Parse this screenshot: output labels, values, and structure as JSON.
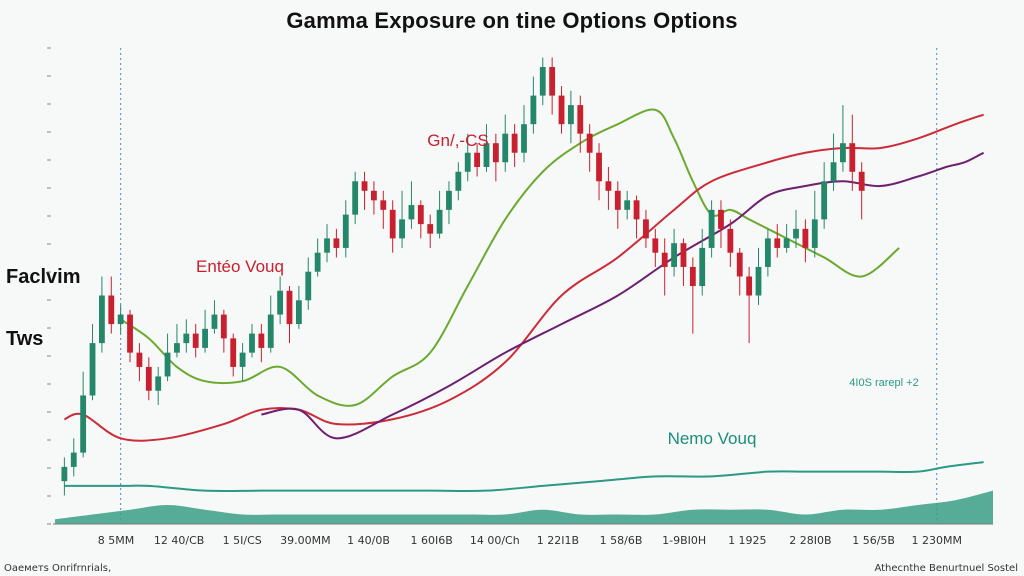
{
  "chart_data": {
    "type": "candlestick",
    "title": "Gamma Exposure on tine Options Options",
    "ylabel": "Faclvim Tws",
    "ylim": [
      0,
      100
    ],
    "xlim": [
      0,
      100
    ],
    "grid": false,
    "x_tick_labels": [
      "8 5MM",
      "12 40/CB",
      "1 5I/CS",
      "39.00MM",
      "1 40/0B",
      "1 60I6B",
      "14 00/Ch",
      "1 22I1B",
      "1 58/6B",
      "1-9BI0H",
      "1 1925",
      "2 28I0B",
      "1 56/5B",
      "1 230MM"
    ],
    "annotations": [
      {
        "text": "Gn/,-CS",
        "color": "#c8202e"
      },
      {
        "text": "Entéo Vouq",
        "color": "#c8202e"
      },
      {
        "text": "Nemo Vouq",
        "color": "#1d8e78"
      },
      {
        "text": "4I0S rarepl +2",
        "color": "#2a9a86"
      }
    ],
    "reference_lines_x": [
      7,
      94
    ],
    "colors": {
      "up": "#25876a",
      "down": "#c8202e",
      "green": "#6aaa2e",
      "red": "#cc2b38",
      "purple": "#6e1f70",
      "teal": "#2a9a86",
      "area": "#3a9f86"
    },
    "series": [
      {
        "type": "line",
        "color": "green",
        "x": [
          7,
          10,
          13,
          16,
          20,
          24,
          28,
          32,
          36,
          40,
          44,
          48,
          52,
          56,
          60,
          64,
          66,
          68,
          70,
          72,
          74,
          78,
          82,
          86,
          90
        ],
        "y": [
          43,
          39,
          33,
          30,
          30,
          33,
          27,
          25,
          31,
          36,
          50,
          64,
          74,
          80,
          84,
          87,
          81,
          72,
          65,
          66,
          64,
          60,
          56,
          52,
          58
        ]
      },
      {
        "type": "line",
        "color": "red",
        "x": [
          1,
          3,
          7,
          12,
          18,
          22,
          26,
          30,
          36,
          42,
          48,
          54,
          60,
          66,
          70,
          76,
          80,
          84,
          88,
          92,
          96,
          99
        ],
        "y": [
          22,
          23,
          18,
          18,
          21,
          24,
          24,
          21,
          22,
          26,
          34,
          48,
          56,
          66,
          72,
          76,
          78,
          79,
          79,
          81,
          84,
          86
        ]
      },
      {
        "type": "line",
        "color": "purple",
        "x": [
          22,
          26,
          30,
          36,
          42,
          48,
          54,
          60,
          66,
          72,
          76,
          80,
          84,
          88,
          92,
          95,
          97,
          99
        ],
        "y": [
          23,
          24,
          18,
          23,
          29,
          36,
          42,
          48,
          56,
          63,
          69,
          71,
          72,
          71,
          73,
          75,
          76,
          78
        ]
      },
      {
        "type": "line",
        "color": "teal",
        "x": [
          1,
          7,
          10,
          16,
          22,
          28,
          34,
          40,
          46,
          52,
          58,
          64,
          70,
          76,
          80,
          84,
          88,
          92,
          95,
          99
        ],
        "y": [
          8,
          8,
          8,
          7,
          7,
          7,
          7,
          7,
          7,
          8,
          9,
          10,
          10,
          11,
          11,
          11,
          11,
          11,
          12,
          13
        ]
      },
      {
        "type": "area",
        "color": "area",
        "x": [
          0,
          4,
          8,
          12,
          16,
          20,
          24,
          28,
          32,
          36,
          40,
          44,
          48,
          52,
          56,
          60,
          64,
          68,
          72,
          76,
          80,
          84,
          88,
          92,
          96,
          100
        ],
        "y": [
          1,
          2,
          3,
          4,
          3,
          2,
          2,
          2,
          2,
          2,
          2,
          2,
          2,
          3,
          2,
          2,
          2,
          3,
          3,
          3,
          2,
          3,
          3,
          4,
          5,
          7
        ]
      }
    ],
    "candles": [
      {
        "x": 1,
        "o": 9,
        "c": 12,
        "h": 14,
        "l": 6
      },
      {
        "x": 2,
        "o": 12,
        "c": 15,
        "h": 18,
        "l": 10
      },
      {
        "x": 3,
        "o": 15,
        "c": 27,
        "h": 32,
        "l": 14
      },
      {
        "x": 4,
        "o": 27,
        "c": 38,
        "h": 42,
        "l": 26
      },
      {
        "x": 5,
        "o": 38,
        "c": 48,
        "h": 52,
        "l": 36
      },
      {
        "x": 6,
        "o": 48,
        "c": 42,
        "h": 52,
        "l": 40
      },
      {
        "x": 7,
        "o": 42,
        "c": 44,
        "h": 46,
        "l": 40
      },
      {
        "x": 8,
        "o": 44,
        "c": 36,
        "h": 45,
        "l": 34
      },
      {
        "x": 9,
        "o": 36,
        "c": 33,
        "h": 38,
        "l": 30
      },
      {
        "x": 10,
        "o": 33,
        "c": 28,
        "h": 35,
        "l": 26
      },
      {
        "x": 11,
        "o": 28,
        "c": 31,
        "h": 33,
        "l": 25
      },
      {
        "x": 12,
        "o": 31,
        "c": 36,
        "h": 40,
        "l": 30
      },
      {
        "x": 13,
        "o": 36,
        "c": 38,
        "h": 42,
        "l": 35
      },
      {
        "x": 14,
        "o": 38,
        "c": 40,
        "h": 43,
        "l": 36
      },
      {
        "x": 15,
        "o": 40,
        "c": 37,
        "h": 42,
        "l": 35
      },
      {
        "x": 16,
        "o": 37,
        "c": 41,
        "h": 45,
        "l": 36
      },
      {
        "x": 17,
        "o": 41,
        "c": 44,
        "h": 47,
        "l": 40
      },
      {
        "x": 18,
        "o": 44,
        "c": 39,
        "h": 45,
        "l": 36
      },
      {
        "x": 19,
        "o": 39,
        "c": 33,
        "h": 40,
        "l": 31
      },
      {
        "x": 20,
        "o": 33,
        "c": 36,
        "h": 38,
        "l": 30
      },
      {
        "x": 21,
        "o": 36,
        "c": 40,
        "h": 42,
        "l": 35
      },
      {
        "x": 22,
        "o": 40,
        "c": 37,
        "h": 42,
        "l": 34
      },
      {
        "x": 23,
        "o": 37,
        "c": 44,
        "h": 48,
        "l": 36
      },
      {
        "x": 24,
        "o": 44,
        "c": 49,
        "h": 52,
        "l": 42
      },
      {
        "x": 25,
        "o": 49,
        "c": 42,
        "h": 50,
        "l": 38
      },
      {
        "x": 26,
        "o": 42,
        "c": 47,
        "h": 50,
        "l": 41
      },
      {
        "x": 27,
        "o": 47,
        "c": 53,
        "h": 56,
        "l": 45
      },
      {
        "x": 28,
        "o": 53,
        "c": 57,
        "h": 60,
        "l": 52
      },
      {
        "x": 29,
        "o": 57,
        "c": 60,
        "h": 63,
        "l": 55
      },
      {
        "x": 30,
        "o": 60,
        "c": 58,
        "h": 62,
        "l": 56
      },
      {
        "x": 31,
        "o": 58,
        "c": 65,
        "h": 68,
        "l": 56
      },
      {
        "x": 32,
        "o": 65,
        "c": 72,
        "h": 74,
        "l": 63
      },
      {
        "x": 33,
        "o": 72,
        "c": 70,
        "h": 74,
        "l": 66
      },
      {
        "x": 34,
        "o": 70,
        "c": 68,
        "h": 72,
        "l": 65
      },
      {
        "x": 35,
        "o": 68,
        "c": 66,
        "h": 70,
        "l": 62
      },
      {
        "x": 36,
        "o": 66,
        "c": 60,
        "h": 68,
        "l": 57
      },
      {
        "x": 37,
        "o": 60,
        "c": 64,
        "h": 70,
        "l": 58
      },
      {
        "x": 38,
        "o": 64,
        "c": 67,
        "h": 72,
        "l": 62
      },
      {
        "x": 39,
        "o": 67,
        "c": 63,
        "h": 68,
        "l": 60
      },
      {
        "x": 40,
        "o": 63,
        "c": 61,
        "h": 65,
        "l": 58
      },
      {
        "x": 41,
        "o": 61,
        "c": 66,
        "h": 70,
        "l": 60
      },
      {
        "x": 42,
        "o": 66,
        "c": 70,
        "h": 72,
        "l": 63
      },
      {
        "x": 43,
        "o": 70,
        "c": 74,
        "h": 76,
        "l": 68
      },
      {
        "x": 44,
        "o": 74,
        "c": 78,
        "h": 82,
        "l": 72
      },
      {
        "x": 45,
        "o": 78,
        "c": 75,
        "h": 80,
        "l": 73
      },
      {
        "x": 46,
        "o": 75,
        "c": 80,
        "h": 84,
        "l": 74
      },
      {
        "x": 47,
        "o": 80,
        "c": 76,
        "h": 82,
        "l": 72
      },
      {
        "x": 48,
        "o": 76,
        "c": 82,
        "h": 86,
        "l": 74
      },
      {
        "x": 49,
        "o": 82,
        "c": 78,
        "h": 84,
        "l": 75
      },
      {
        "x": 50,
        "o": 78,
        "c": 84,
        "h": 88,
        "l": 76
      },
      {
        "x": 51,
        "o": 84,
        "c": 90,
        "h": 94,
        "l": 82
      },
      {
        "x": 52,
        "o": 90,
        "c": 96,
        "h": 98,
        "l": 88
      },
      {
        "x": 53,
        "o": 96,
        "c": 90,
        "h": 98,
        "l": 86
      },
      {
        "x": 54,
        "o": 90,
        "c": 84,
        "h": 92,
        "l": 82
      },
      {
        "x": 55,
        "o": 84,
        "c": 88,
        "h": 91,
        "l": 80
      },
      {
        "x": 56,
        "o": 88,
        "c": 82,
        "h": 90,
        "l": 78
      },
      {
        "x": 57,
        "o": 82,
        "c": 78,
        "h": 84,
        "l": 74
      },
      {
        "x": 58,
        "o": 78,
        "c": 72,
        "h": 80,
        "l": 68
      },
      {
        "x": 59,
        "o": 72,
        "c": 70,
        "h": 75,
        "l": 66
      },
      {
        "x": 60,
        "o": 70,
        "c": 66,
        "h": 72,
        "l": 62
      },
      {
        "x": 61,
        "o": 66,
        "c": 68,
        "h": 70,
        "l": 64
      },
      {
        "x": 62,
        "o": 68,
        "c": 64,
        "h": 69,
        "l": 60
      },
      {
        "x": 63,
        "o": 64,
        "c": 60,
        "h": 66,
        "l": 58
      },
      {
        "x": 64,
        "o": 60,
        "c": 57,
        "h": 62,
        "l": 54
      },
      {
        "x": 65,
        "o": 57,
        "c": 54,
        "h": 60,
        "l": 48
      },
      {
        "x": 66,
        "o": 54,
        "c": 59,
        "h": 62,
        "l": 52
      },
      {
        "x": 67,
        "o": 59,
        "c": 54,
        "h": 60,
        "l": 50
      },
      {
        "x": 68,
        "o": 54,
        "c": 50,
        "h": 56,
        "l": 40
      },
      {
        "x": 69,
        "o": 50,
        "c": 58,
        "h": 62,
        "l": 48
      },
      {
        "x": 70,
        "o": 58,
        "c": 66,
        "h": 68,
        "l": 56
      },
      {
        "x": 71,
        "o": 66,
        "c": 62,
        "h": 68,
        "l": 58
      },
      {
        "x": 72,
        "o": 62,
        "c": 57,
        "h": 64,
        "l": 54
      },
      {
        "x": 73,
        "o": 57,
        "c": 52,
        "h": 58,
        "l": 48
      },
      {
        "x": 74,
        "o": 52,
        "c": 48,
        "h": 54,
        "l": 38
      },
      {
        "x": 75,
        "o": 48,
        "c": 54,
        "h": 58,
        "l": 46
      },
      {
        "x": 76,
        "o": 54,
        "c": 60,
        "h": 62,
        "l": 52
      },
      {
        "x": 77,
        "o": 60,
        "c": 58,
        "h": 63,
        "l": 56
      },
      {
        "x": 78,
        "o": 58,
        "c": 60,
        "h": 63,
        "l": 57
      },
      {
        "x": 79,
        "o": 60,
        "c": 62,
        "h": 66,
        "l": 58
      },
      {
        "x": 80,
        "o": 62,
        "c": 58,
        "h": 64,
        "l": 55
      },
      {
        "x": 81,
        "o": 58,
        "c": 64,
        "h": 70,
        "l": 56
      },
      {
        "x": 82,
        "o": 64,
        "c": 72,
        "h": 76,
        "l": 62
      },
      {
        "x": 83,
        "o": 72,
        "c": 76,
        "h": 82,
        "l": 70
      },
      {
        "x": 84,
        "o": 76,
        "c": 80,
        "h": 88,
        "l": 74
      },
      {
        "x": 85,
        "o": 80,
        "c": 74,
        "h": 86,
        "l": 70
      },
      {
        "x": 86,
        "o": 74,
        "c": 70,
        "h": 76,
        "l": 64
      }
    ]
  },
  "footer": {
    "left": "Оаеметs Onrifrnrials,",
    "right": "Athecnthe Benurtnuel Sostel"
  }
}
